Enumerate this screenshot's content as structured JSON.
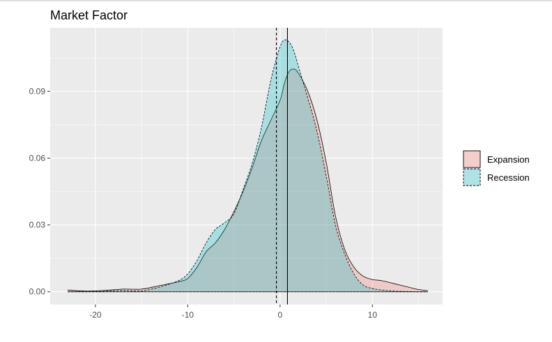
{
  "chart_data": {
    "type": "area",
    "title": "Market Factor",
    "xlabel": "",
    "ylabel": "",
    "xlim": [
      -24.9,
      17.6
    ],
    "ylim": [
      -0.0057,
      0.1185
    ],
    "x_ticks": [
      -20,
      -10,
      0,
      10
    ],
    "x_tick_labels": [
      "-20",
      "-10",
      "0",
      "10"
    ],
    "y_ticks": [
      0.0,
      0.03,
      0.06,
      0.09
    ],
    "y_tick_labels": [
      "0.00",
      "0.03",
      "0.06",
      "0.09"
    ],
    "grid": true,
    "legend_position": "right",
    "series": [
      {
        "name": "Expansion",
        "fill": "#F8766D",
        "line_style": "solid",
        "mean_line": 0.8,
        "x": [
          -23,
          -21,
          -19,
          -17,
          -15,
          -13,
          -11,
          -10,
          -9,
          -8,
          -7,
          -6,
          -5,
          -4,
          -3,
          -2,
          -1,
          0,
          0.5,
          1,
          1.5,
          2,
          3,
          4,
          5,
          6,
          7,
          8,
          9,
          10,
          11,
          12,
          13,
          14,
          15,
          16
        ],
        "y": [
          0.0008,
          0.0003,
          0.0006,
          0.0012,
          0.0012,
          0.0028,
          0.0045,
          0.006,
          0.011,
          0.018,
          0.022,
          0.028,
          0.036,
          0.045,
          0.056,
          0.068,
          0.077,
          0.086,
          0.094,
          0.099,
          0.1,
          0.098,
          0.09,
          0.077,
          0.058,
          0.034,
          0.019,
          0.011,
          0.007,
          0.0055,
          0.005,
          0.004,
          0.003,
          0.002,
          0.001,
          0.0005
        ]
      },
      {
        "name": "Recession",
        "fill": "#00BFC4",
        "line_style": "dashed",
        "mean_line": -0.4,
        "x": [
          -23,
          -21,
          -19,
          -17,
          -15,
          -13,
          -11,
          -10,
          -9,
          -8,
          -7,
          -6,
          -5,
          -4,
          -3,
          -2,
          -1,
          0,
          0.5,
          1,
          1.5,
          2,
          3,
          4,
          5,
          6,
          7,
          8,
          9,
          10,
          11,
          12,
          13,
          14,
          15,
          16
        ],
        "y": [
          0.0,
          0.0001,
          0.0002,
          0.0006,
          0.0004,
          0.0022,
          0.005,
          0.008,
          0.014,
          0.022,
          0.028,
          0.031,
          0.035,
          0.046,
          0.058,
          0.074,
          0.095,
          0.11,
          0.113,
          0.112,
          0.108,
          0.101,
          0.087,
          0.072,
          0.052,
          0.03,
          0.017,
          0.008,
          0.003,
          0.0015,
          0.0008,
          0.0004,
          0.0002,
          0.0001,
          0.0,
          0.0
        ]
      }
    ]
  }
}
